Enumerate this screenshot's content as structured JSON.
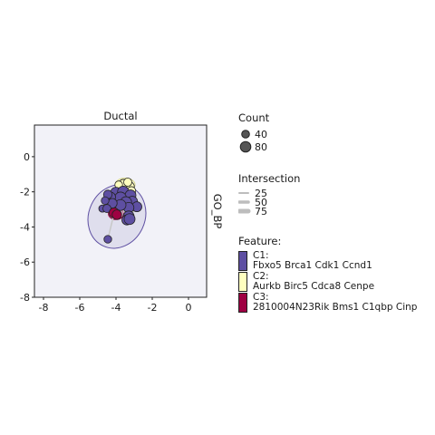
{
  "chart_data": {
    "type": "scatter",
    "title": "Ductal",
    "facet_label": "GO_BP",
    "xlim": [
      -8.5,
      1
    ],
    "ylim": [
      -8,
      1.8
    ],
    "x_ticks": [
      -8,
      -6,
      -4,
      -2,
      0
    ],
    "y_ticks": [
      0,
      -2,
      -4,
      -6,
      -8
    ],
    "x_tick_labels": [
      "-8",
      "-6",
      "-4",
      "-2",
      "0"
    ],
    "y_tick_labels": [
      "0",
      "-2",
      "-4",
      "-6",
      "-8"
    ],
    "clusters": [
      {
        "id": "C1",
        "color": "#5e4fa2",
        "fill_opacity": 0.12,
        "ellipse": {
          "cx": -3.95,
          "cy": -3.4,
          "rx": 1.55,
          "ry": 1.85,
          "angle": 25
        }
      },
      {
        "id": "C2",
        "color": "#ffffbf",
        "fill_opacity": 0.5,
        "ellipse": {
          "cx": -3.5,
          "cy": -1.6,
          "rx": 0.55,
          "ry": 0.38,
          "angle": 0
        }
      },
      {
        "id": "C3",
        "color": "#9e0142",
        "fill_opacity": 0.2,
        "ellipse": {
          "cx": -4.0,
          "cy": -3.25,
          "rx": 0.42,
          "ry": 0.33,
          "angle": 0
        }
      }
    ],
    "points": [
      {
        "x": -3.25,
        "y": -1.7,
        "size": 55,
        "cluster": "C2"
      },
      {
        "x": -3.6,
        "y": -1.55,
        "size": 50,
        "cluster": "C2"
      },
      {
        "x": -3.15,
        "y": -1.95,
        "size": 45,
        "cluster": "C2"
      },
      {
        "x": -3.85,
        "y": -1.6,
        "size": 35,
        "cluster": "C2"
      },
      {
        "x": -3.35,
        "y": -1.45,
        "size": 40,
        "cluster": "C2"
      },
      {
        "x": -4.0,
        "y": -2.05,
        "size": 70,
        "cluster": "C1"
      },
      {
        "x": -3.6,
        "y": -2.0,
        "size": 75,
        "cluster": "C1"
      },
      {
        "x": -3.2,
        "y": -2.2,
        "size": 70,
        "cluster": "C1"
      },
      {
        "x": -3.75,
        "y": -2.35,
        "size": 80,
        "cluster": "C1"
      },
      {
        "x": -4.3,
        "y": -2.3,
        "size": 60,
        "cluster": "C1"
      },
      {
        "x": -4.45,
        "y": -2.15,
        "size": 45,
        "cluster": "C1"
      },
      {
        "x": -3.1,
        "y": -2.55,
        "size": 65,
        "cluster": "C1"
      },
      {
        "x": -3.45,
        "y": -2.6,
        "size": 75,
        "cluster": "C1"
      },
      {
        "x": -2.85,
        "y": -2.85,
        "size": 60,
        "cluster": "C1"
      },
      {
        "x": -3.3,
        "y": -2.9,
        "size": 65,
        "cluster": "C1"
      },
      {
        "x": -3.75,
        "y": -2.75,
        "size": 70,
        "cluster": "C1"
      },
      {
        "x": -4.2,
        "y": -2.65,
        "size": 55,
        "cluster": "C1"
      },
      {
        "x": -4.6,
        "y": -2.5,
        "size": 35,
        "cluster": "C1"
      },
      {
        "x": -4.75,
        "y": -2.95,
        "size": 30,
        "cluster": "C1"
      },
      {
        "x": -3.3,
        "y": -3.4,
        "size": 70,
        "cluster": "C1"
      },
      {
        "x": -3.4,
        "y": -3.6,
        "size": 60,
        "cluster": "C1"
      },
      {
        "x": -3.25,
        "y": -3.55,
        "size": 70,
        "cluster": "C1"
      },
      {
        "x": -4.5,
        "y": -2.95,
        "size": 40,
        "cluster": "C1"
      },
      {
        "x": -4.45,
        "y": -4.7,
        "size": 35,
        "cluster": "C1"
      },
      {
        "x": -4.1,
        "y": -3.2,
        "size": 62,
        "cluster": "C3"
      },
      {
        "x": -3.95,
        "y": -3.3,
        "size": 55,
        "cluster": "C3"
      }
    ]
  },
  "legend": {
    "count_title": "Count",
    "count_items": [
      {
        "label": "40",
        "size": 40
      },
      {
        "label": "80",
        "size": 80
      }
    ],
    "intersection_title": "Intersection",
    "intersection_items": [
      {
        "label": "25"
      },
      {
        "label": "50"
      },
      {
        "label": "75"
      }
    ],
    "feature_title": "Feature:",
    "features": [
      {
        "id": "C1",
        "color": "#5e4fa2",
        "label": "C1:",
        "genes": "Fbxo5 Brca1 Cdk1 Ccnd1"
      },
      {
        "id": "C2",
        "color": "#ffffbf",
        "label": "C2:",
        "genes": "Aurkb Birc5 Cdca8 Cenpe"
      },
      {
        "id": "C3",
        "color": "#9e0142",
        "label": "C3:",
        "genes": "2810004N23Rik Bms1 C1qbp Cinp"
      }
    ]
  }
}
